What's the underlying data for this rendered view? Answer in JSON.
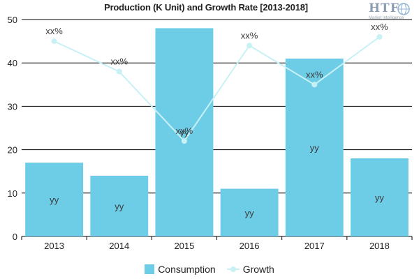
{
  "chart_data": {
    "type": "bar",
    "title": "Production (K Unit) and Growth Rate [2013-2018]",
    "categories": [
      "2013",
      "2014",
      "2015",
      "2016",
      "2017",
      "2018"
    ],
    "ylim": [
      0,
      50
    ],
    "yticks": [
      "0",
      "10",
      "20",
      "30",
      "40",
      "50"
    ],
    "grid": true,
    "legend_position": "bottom",
    "series": [
      {
        "name": "Consumption",
        "kind": "bar",
        "color": "#6ecde6",
        "values": [
          17,
          14,
          48,
          11,
          41,
          18
        ],
        "labels": [
          "yy",
          "yy",
          "yy",
          "yy",
          "yy",
          "yy"
        ]
      },
      {
        "name": "Growth",
        "kind": "line",
        "color": "#c8f1f6",
        "values": [
          45,
          38,
          22,
          44,
          35,
          46
        ],
        "labels": [
          "xx%",
          "xx%",
          "xx%",
          "xx%",
          "xx%",
          "xx%"
        ]
      }
    ]
  },
  "logo": {
    "text": "HTF",
    "subtext": "Market Intelligence"
  }
}
